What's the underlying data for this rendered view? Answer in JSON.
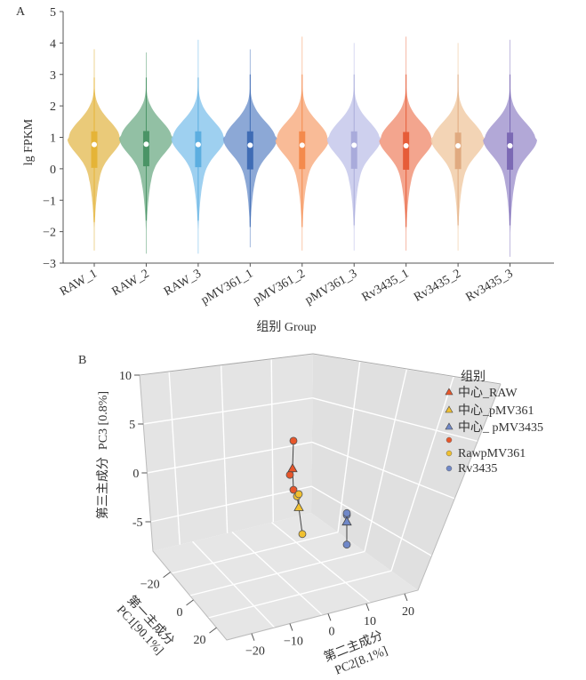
{
  "chart_data": [
    {
      "panel_label": "A",
      "type": "violin",
      "title": "",
      "xlabel": "组别 Group",
      "ylabel": "lg FPKM",
      "ylim": [
        -3,
        5
      ],
      "yticks": [
        -3,
        -2,
        -1,
        0,
        1,
        2,
        3,
        4,
        5
      ],
      "ytick_labels": [
        "−3",
        "−2",
        "−1",
        "0",
        "1",
        "2",
        "3",
        "4",
        "5"
      ],
      "categories": [
        "RAW_1",
        "RAW_2",
        "RAW_3",
        "pMV361_1",
        "pMV361_2",
        "pMV361_3",
        "Rv3435_1",
        "Rv3435_2",
        "Rv3435_3"
      ],
      "series": [
        {
          "name": "RAW_1",
          "color": "#e8c46a",
          "box_color": "#e5b437",
          "median": 0.77,
          "q1": 0.03,
          "q3": 1.19,
          "whisker_low": -1.7,
          "whisker_high": 2.9,
          "min": -2.6,
          "max": 3.8,
          "mode": 1.0
        },
        {
          "name": "RAW_2",
          "color": "#86b99a",
          "box_color": "#4a9466",
          "median": 0.78,
          "q1": 0.08,
          "q3": 1.2,
          "whisker_low": -1.65,
          "whisker_high": 2.9,
          "min": -2.7,
          "max": 3.7,
          "mode": 1.0
        },
        {
          "name": "RAW_3",
          "color": "#93cbee",
          "box_color": "#5caee0",
          "median": 0.77,
          "q1": 0.05,
          "q3": 1.19,
          "whisker_low": -1.65,
          "whisker_high": 2.9,
          "min": -2.7,
          "max": 4.1,
          "mode": 1.0
        },
        {
          "name": "pMV361_1",
          "color": "#7f9fd2",
          "box_color": "#3f6cb5",
          "median": 0.75,
          "q1": -0.02,
          "q3": 1.19,
          "whisker_low": -1.85,
          "whisker_high": 3.0,
          "min": -2.5,
          "max": 3.8,
          "mode": 0.97
        },
        {
          "name": "pMV361_2",
          "color": "#f8b48c",
          "box_color": "#f48a4c",
          "median": 0.75,
          "q1": -0.01,
          "q3": 1.19,
          "whisker_low": -1.85,
          "whisker_high": 3.0,
          "min": -2.6,
          "max": 4.2,
          "mode": 0.97
        },
        {
          "name": "pMV361_3",
          "color": "#c9cbec",
          "box_color": "#a9abdb",
          "median": 0.75,
          "q1": 0.0,
          "q3": 1.19,
          "whisker_low": -1.8,
          "whisker_high": 3.0,
          "min": -2.6,
          "max": 4.0,
          "mode": 0.97
        },
        {
          "name": "Rv3435_1",
          "color": "#f29b82",
          "box_color": "#e65c38",
          "median": 0.73,
          "q1": -0.03,
          "q3": 1.17,
          "whisker_low": -1.85,
          "whisker_high": 3.0,
          "min": -2.6,
          "max": 4.2,
          "mode": 0.95
        },
        {
          "name": "Rv3435_2",
          "color": "#f2cfad",
          "box_color": "#e0aa80",
          "median": 0.73,
          "q1": -0.01,
          "q3": 1.15,
          "whisker_low": -1.8,
          "whisker_high": 3.0,
          "min": -2.6,
          "max": 4.0,
          "mode": 0.95
        },
        {
          "name": "Rv3435_3",
          "color": "#aa9fd3",
          "box_color": "#7b69b4",
          "median": 0.73,
          "q1": -0.03,
          "q3": 1.15,
          "whisker_low": -1.8,
          "whisker_high": 3.0,
          "min": -2.8,
          "max": 4.1,
          "mode": 0.95
        }
      ]
    },
    {
      "panel_label": "B",
      "type": "scatter3d",
      "title": "",
      "xlabel": "第一主成分 PC1[90.1%]",
      "ylabel": "第二主成分 PC2[8.1%]",
      "zlabel": "第三主成分  PC3 [0.8%]",
      "xlabel_cn": "第一主成分",
      "xlabel_en": "PC1[90.1%]",
      "ylabel_cn": "第二主成分",
      "ylabel_en": "PC2[8.1%]",
      "zlabel_cn": "第三主成分",
      "zlabel_en": "PC3 [0.8%]",
      "xlim": [
        -30,
        30
      ],
      "ylim": [
        -30,
        30
      ],
      "zlim": [
        -8,
        10
      ],
      "xticks": [
        -20,
        0,
        20
      ],
      "yticks": [
        -20,
        -10,
        0,
        10,
        20
      ],
      "zticks": [
        -5,
        0,
        5,
        10
      ],
      "xtick_labels": [
        "−20",
        "0",
        "20"
      ],
      "ytick_labels": [
        "−20",
        "−10",
        "0",
        "10",
        "20"
      ],
      "ztick_labels": [
        "-5",
        "0",
        "5",
        "10"
      ],
      "legend_title": "组别",
      "legend_position": "right",
      "groups": [
        {
          "name": "中心_RAW",
          "marker": "triangle",
          "color": "#e8562a",
          "centroid_of": "RawpMV361-orange"
        },
        {
          "name": "中心_pMV361",
          "marker": "triangle",
          "color": "#f0c030",
          "centroid_of": "RawpMV361"
        },
        {
          "name": "中心_ pMV3435",
          "marker": "triangle",
          "color": "#7088c8",
          "centroid_of": "Rv3435"
        },
        {
          "name": "",
          "marker": "circle",
          "color": "#e8562a"
        },
        {
          "name": "RawpMV361",
          "marker": "circle",
          "color": "#f0c030"
        },
        {
          "name": "Rv3435",
          "marker": "circle",
          "color": "#7088c8"
        }
      ],
      "points": [
        {
          "group": "orange",
          "type": "circle",
          "color": "#e8562a",
          "x": 0,
          "y": -18,
          "z": 4
        },
        {
          "group": "orange",
          "type": "circle",
          "color": "#e8562a",
          "x": 0,
          "y": -20,
          "z": 0.2
        },
        {
          "group": "orange",
          "type": "circle",
          "color": "#e8562a",
          "x": 0,
          "y": -18,
          "z": -1.3
        },
        {
          "group": "orange",
          "type": "triangle",
          "color": "#e8562a",
          "x": 0,
          "y": -18.5,
          "z": 1
        },
        {
          "group": "yellow",
          "type": "circle",
          "color": "#f0c030",
          "x": 0,
          "y": -16,
          "z": -1.9
        },
        {
          "group": "yellow",
          "type": "circle",
          "color": "#f0c030",
          "x": 0,
          "y": -15,
          "z": -1.6
        },
        {
          "group": "yellow",
          "type": "circle",
          "color": "#f0c030",
          "x": 0,
          "y": -13,
          "z": -5.8
        },
        {
          "group": "yellow",
          "type": "triangle",
          "color": "#f0c030",
          "x": 0,
          "y": -15,
          "z": -3
        },
        {
          "group": "blue",
          "type": "circle",
          "color": "#7088c8",
          "x": 0,
          "y": 12,
          "z": -2.3
        },
        {
          "group": "blue",
          "type": "circle",
          "color": "#7088c8",
          "x": 0,
          "y": 12,
          "z": -2.1
        },
        {
          "group": "blue",
          "type": "circle",
          "color": "#7088c8",
          "x": 0,
          "y": 12,
          "z": -5.5
        },
        {
          "group": "blue",
          "type": "triangle",
          "color": "#7088c8",
          "x": 0,
          "y": 12,
          "z": -3
        }
      ]
    }
  ],
  "legend": {
    "title": "组别",
    "items": [
      {
        "label": "中心_RAW",
        "marker": "triangle",
        "color": "#e8562a"
      },
      {
        "label": "中心_pMV361",
        "marker": "triangle",
        "color": "#f0c030"
      },
      {
        "label": "中心_ pMV3435",
        "marker": "triangle",
        "color": "#7088c8"
      },
      {
        "label": "",
        "marker": "circle",
        "color": "#e8562a"
      },
      {
        "label": "RawpMV361",
        "marker": "circle",
        "color": "#f0c030"
      },
      {
        "label": "Rv3435",
        "marker": "circle",
        "color": "#7088c8"
      }
    ]
  }
}
